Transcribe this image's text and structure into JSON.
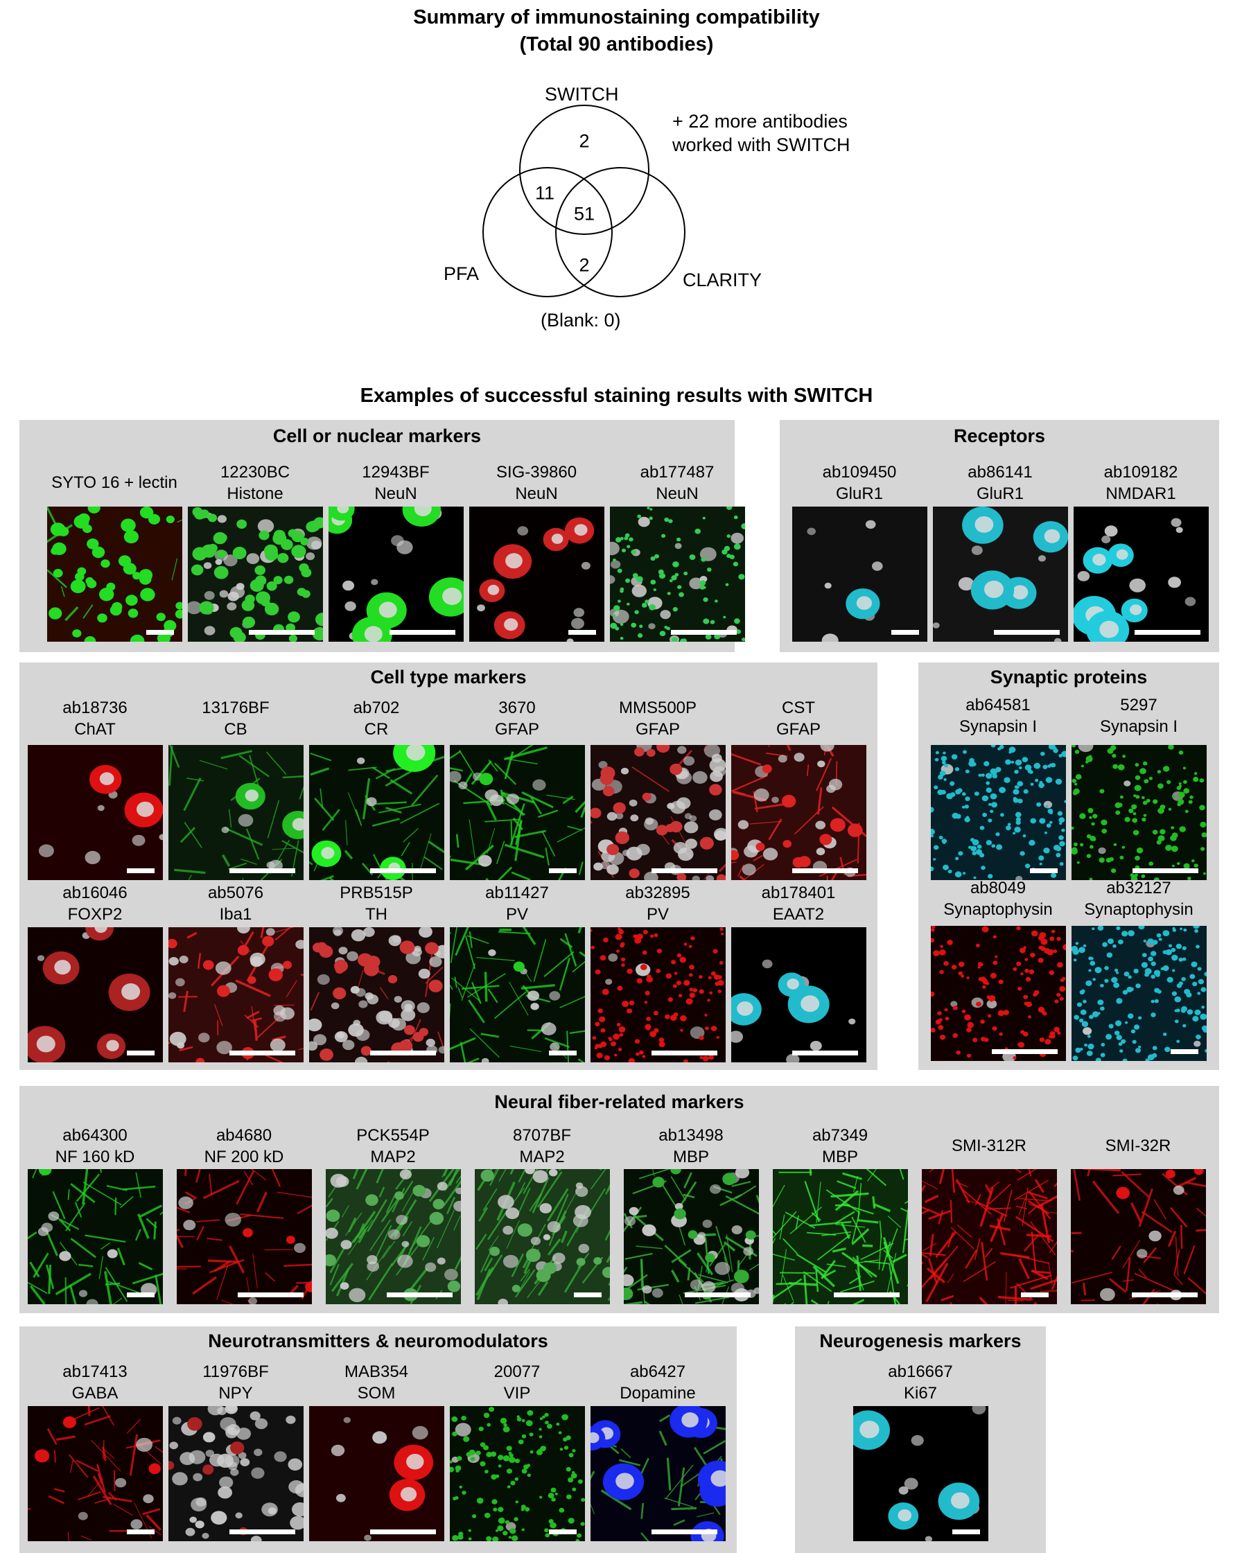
{
  "summary": {
    "title_line1": "Summary of immunostaining compatibility",
    "title_line2": "(Total 90 antibodies)"
  },
  "venn": {
    "labels": {
      "switch": "SWITCH",
      "pfa": "PFA",
      "clarity": "CLARITY"
    },
    "counts": {
      "switch_only": "2",
      "switch_pfa": "11",
      "all_three": "51",
      "pfa_clarity": "2"
    },
    "blank": "(Blank: 0)",
    "note_line1": "+ 22 more antibodies",
    "note_line2": "worked with SWITCH"
  },
  "examples_title": "Examples of successful staining results with SWITCH",
  "panels": [
    {
      "title": "Cell or nuclear markers",
      "tiles": [
        {
          "id": "SYTO 16 + lectin",
          "target": "",
          "style": "syto"
        },
        {
          "id": "12230BC",
          "target": "Histone",
          "style": "histone"
        },
        {
          "id": "12943BF",
          "target": "NeuN",
          "style": "neun-green"
        },
        {
          "id": "SIG-39860",
          "target": "NeuN",
          "style": "neun-red"
        },
        {
          "id": "ab177487",
          "target": "NeuN",
          "style": "neun-dense"
        }
      ]
    },
    {
      "title": "Receptors",
      "tiles": [
        {
          "id": "ab109450",
          "target": "GluR1",
          "style": "cyan-sparse"
        },
        {
          "id": "ab86141",
          "target": "GluR1",
          "style": "cyan-nuc"
        },
        {
          "id": "ab109182",
          "target": "NMDAR1",
          "style": "cyan-cell"
        }
      ]
    },
    {
      "title": "Cell type markers",
      "tiles": [
        {
          "id": "ab18736",
          "target": "ChAT",
          "style": "red-cell"
        },
        {
          "id": "13176BF",
          "target": "CB",
          "style": "green-cell"
        },
        {
          "id": "ab702",
          "target": "CR",
          "style": "green-bright"
        },
        {
          "id": "3670",
          "target": "GFAP",
          "style": "green-fiber"
        },
        {
          "id": "MMS500P",
          "target": "GFAP",
          "style": "red-dense"
        },
        {
          "id": "CST",
          "target": "GFAP",
          "style": "red-astro"
        },
        {
          "id": "ab16046",
          "target": "FOXP2",
          "style": "red-nuc"
        },
        {
          "id": "ab5076",
          "target": "Iba1",
          "style": "red-astro"
        },
        {
          "id": "PRB515P",
          "target": "TH",
          "style": "red-dense"
        },
        {
          "id": "ab11427",
          "target": "PV",
          "style": "green-fiber"
        },
        {
          "id": "ab32895",
          "target": "PV",
          "style": "red-dots"
        },
        {
          "id": "ab178401",
          "target": "EAAT2",
          "style": "black-cyan"
        }
      ]
    },
    {
      "title": "Synaptic proteins",
      "tiles": [
        {
          "id": "ab64581",
          "target": "Synapsin I",
          "style": "cyan-dots"
        },
        {
          "id": "5297",
          "target": "Synapsin I",
          "style": "green-dots"
        },
        {
          "id": "ab8049",
          "target": "Synaptophysin",
          "style": "red-dots"
        },
        {
          "id": "ab32127",
          "target": "Synaptophysin",
          "style": "cyan-dots"
        }
      ]
    },
    {
      "title": "Neural fiber-related markers",
      "tiles": [
        {
          "id": "ab64300",
          "target": "NF 160 kD",
          "style": "green-fiber"
        },
        {
          "id": "ab4680",
          "target": "NF 200 kD",
          "style": "red-fiber"
        },
        {
          "id": "PCK554P",
          "target": "MAP2",
          "style": "green-lines"
        },
        {
          "id": "8707BF",
          "target": "MAP2",
          "style": "green-lines"
        },
        {
          "id": "ab13498",
          "target": "MBP",
          "style": "green-mesh"
        },
        {
          "id": "ab7349",
          "target": "MBP",
          "style": "green-mesh-bright"
        },
        {
          "id": "SMI-312R",
          "target": "",
          "style": "red-mesh"
        },
        {
          "id": "SMI-32R",
          "target": "",
          "style": "red-fiber"
        }
      ]
    },
    {
      "title": "Neurotransmitters & neuromodulators",
      "tiles": [
        {
          "id": "ab17413",
          "target": "GABA",
          "style": "red-fiber"
        },
        {
          "id": "11976BF",
          "target": "NPY",
          "style": "gray-nuc"
        },
        {
          "id": "MAB354",
          "target": "SOM",
          "style": "red-cell"
        },
        {
          "id": "20077",
          "target": "VIP",
          "style": "green-dots"
        },
        {
          "id": "ab6427",
          "target": "Dopamine",
          "style": "blue-nuc"
        }
      ]
    },
    {
      "title": "Neurogenesis markers",
      "tiles": [
        {
          "id": "ab16667",
          "target": "Ki67",
          "style": "black-cyan"
        }
      ]
    }
  ]
}
